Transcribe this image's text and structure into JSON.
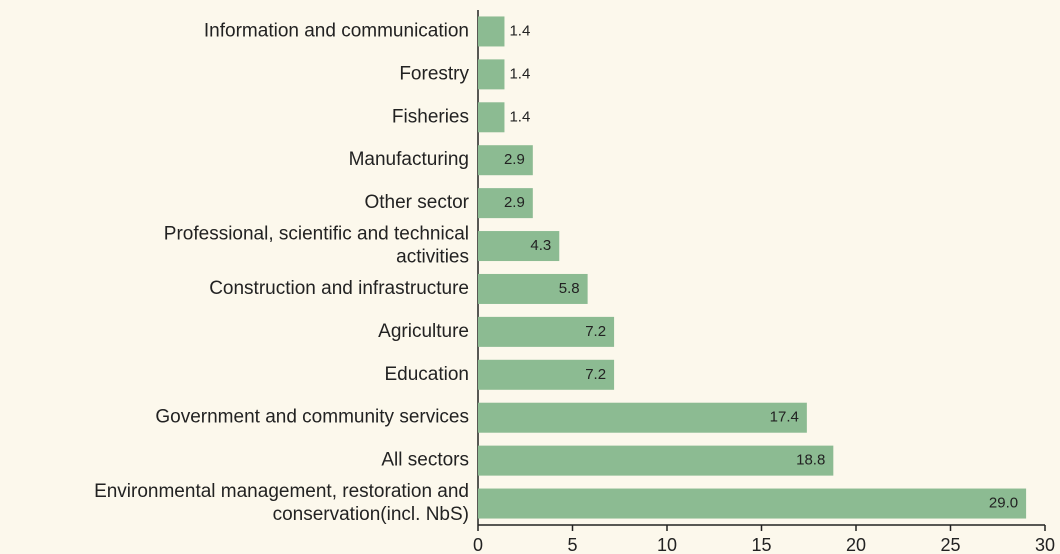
{
  "chart_data": {
    "type": "bar",
    "orientation": "horizontal",
    "categories": [
      "Information and communication",
      "Forestry",
      "Fisheries",
      "Manufacturing",
      "Other sector",
      "Professional, scientific and technical activities",
      "Construction and infrastructure",
      "Agriculture",
      "Education",
      "Government and community services",
      "All sectors",
      "Environmental management, restoration and conservation(incl. NbS)"
    ],
    "values": [
      1.4,
      1.4,
      1.4,
      2.9,
      2.9,
      4.3,
      5.8,
      7.2,
      7.2,
      17.4,
      18.8,
      29.0
    ],
    "value_labels": [
      "1.4",
      "1.4",
      "1.4",
      "2.9",
      "2.9",
      "4.3",
      "5.8",
      "7.2",
      "7.2",
      "17.4",
      "18.8",
      "29.0"
    ],
    "color": "#8cbb92",
    "xlim": [
      0,
      30
    ],
    "xticks": [
      0,
      5,
      10,
      15,
      20,
      25,
      30
    ]
  }
}
